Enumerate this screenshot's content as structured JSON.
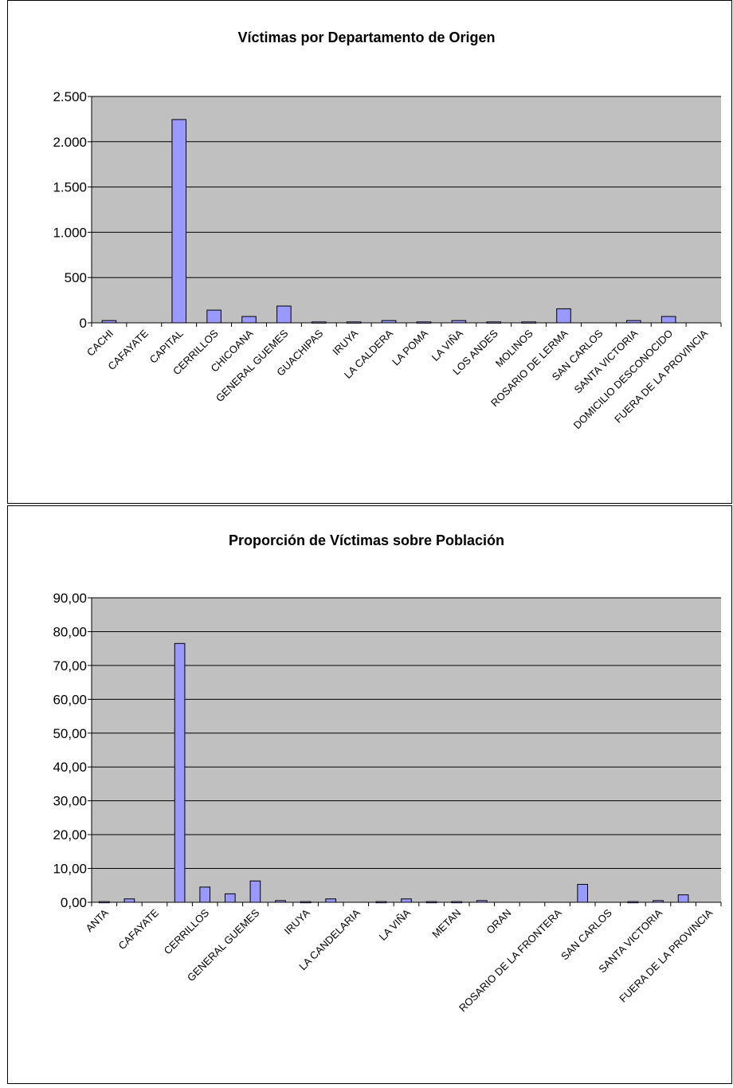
{
  "chart_data": [
    {
      "type": "bar",
      "title": "Víctimas por Departamento de Origen",
      "categories": [
        "CACHI",
        "CAFAYATE",
        "CAPITAL",
        "CERRILLOS",
        "CHICOANA",
        "GENERAL GUEMES",
        "GUACHIPAS",
        "IRUYA",
        "LA CALDERA",
        "LA POMA",
        "LA VIÑA",
        "LOS ANDES",
        "MOLINOS",
        "ROSARIO DE LERMA",
        "SAN CARLOS",
        "SANTA VICTORIA",
        "DOMICILIO DESCONOCIDO",
        "FUERA DE LA PROVINCIA"
      ],
      "values": [
        25,
        null,
        2245,
        140,
        70,
        185,
        10,
        10,
        25,
        10,
        25,
        10,
        10,
        155,
        null,
        25,
        70,
        null
      ],
      "color": "#9999ff",
      "ylim": [
        0,
        2500
      ],
      "yticks": [
        0,
        500,
        {
          "value": 1000,
          "label": "1.000"
        },
        {
          "value": 1500,
          "label": "1.500"
        },
        {
          "value": 2000,
          "label": "2.000"
        },
        {
          "value": 2500,
          "label": "2.500"
        }
      ],
      "grid": true
    },
    {
      "type": "bar",
      "title": "Proporción de Víctimas sobre Población",
      "categories": [
        "ANTA",
        null,
        "CAFAYATE",
        null,
        "CERRILLOS",
        null,
        "GENERAL GUEMES",
        null,
        "IRUYA",
        null,
        "LA CANDELARIA",
        null,
        "LA VIÑA",
        null,
        "METAN",
        null,
        "ORAN",
        null,
        "ROSARIO DE LA FRONTERA",
        null,
        "SAN CARLOS",
        null,
        "SANTA VICTORIA",
        null,
        "FUERA DE LA PROVINCIA"
      ],
      "values": [
        0.2,
        1.0,
        null,
        76.5,
        4.5,
        2.5,
        6.3,
        0.5,
        0.2,
        1.0,
        null,
        0.2,
        1.0,
        0.2,
        0.2,
        0.5,
        null,
        null,
        null,
        5.3,
        null,
        0.2,
        0.5,
        2.2,
        null
      ],
      "color": "#9999ff",
      "ylim": [
        0,
        90
      ],
      "yticks": [
        {
          "value": 0,
          "label": "0,00"
        },
        {
          "value": 10,
          "label": "10,00"
        },
        {
          "value": 20,
          "label": "20,00"
        },
        {
          "value": 30,
          "label": "30,00"
        },
        {
          "value": 40,
          "label": "40,00"
        },
        {
          "value": 50,
          "label": "50,00"
        },
        {
          "value": 60,
          "label": "60,00"
        },
        {
          "value": 70,
          "label": "70,00"
        },
        {
          "value": 80,
          "label": "80,00"
        },
        {
          "value": 90,
          "label": "90,00"
        }
      ],
      "grid": true
    }
  ]
}
